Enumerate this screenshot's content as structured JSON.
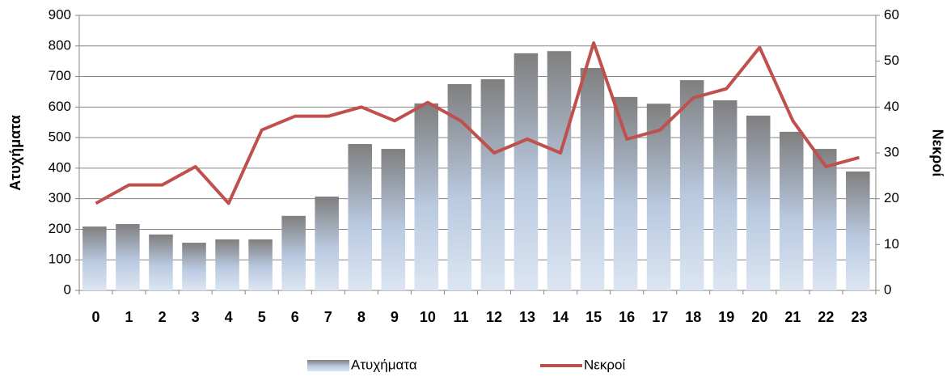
{
  "chart_data": {
    "type": "bar-line",
    "categories": [
      "0",
      "1",
      "2",
      "3",
      "4",
      "5",
      "6",
      "7",
      "8",
      "9",
      "10",
      "11",
      "12",
      "13",
      "14",
      "15",
      "16",
      "17",
      "18",
      "19",
      "20",
      "21",
      "22",
      "23"
    ],
    "series": [
      {
        "name": "Ατυχήματα",
        "type": "bar",
        "color": "#7f7f7f",
        "values": [
          209,
          217,
          183,
          156,
          167,
          167,
          244,
          307,
          479,
          463,
          612,
          675,
          691,
          776,
          783,
          728,
          633,
          611,
          688,
          622,
          572,
          519,
          463,
          389
        ]
      },
      {
        "name": "Νεκροί",
        "type": "line",
        "axis": "y2",
        "color": "#c0504d",
        "values": [
          19,
          23,
          23,
          27,
          19,
          35,
          38,
          38,
          40,
          37,
          41,
          37,
          30,
          33,
          30,
          54,
          33,
          35,
          42,
          44,
          53,
          37,
          27,
          29
        ]
      }
    ],
    "ylabel": "Ατυχήματα",
    "y2label": "Νεκροί",
    "ylim": [
      0,
      900
    ],
    "yticks": [
      0,
      100,
      200,
      300,
      400,
      500,
      600,
      700,
      800,
      900
    ],
    "y2lim": [
      0,
      60
    ],
    "y2ticks": [
      0,
      10,
      20,
      30,
      40,
      50,
      60
    ],
    "grid": true,
    "legend": "bottom"
  }
}
